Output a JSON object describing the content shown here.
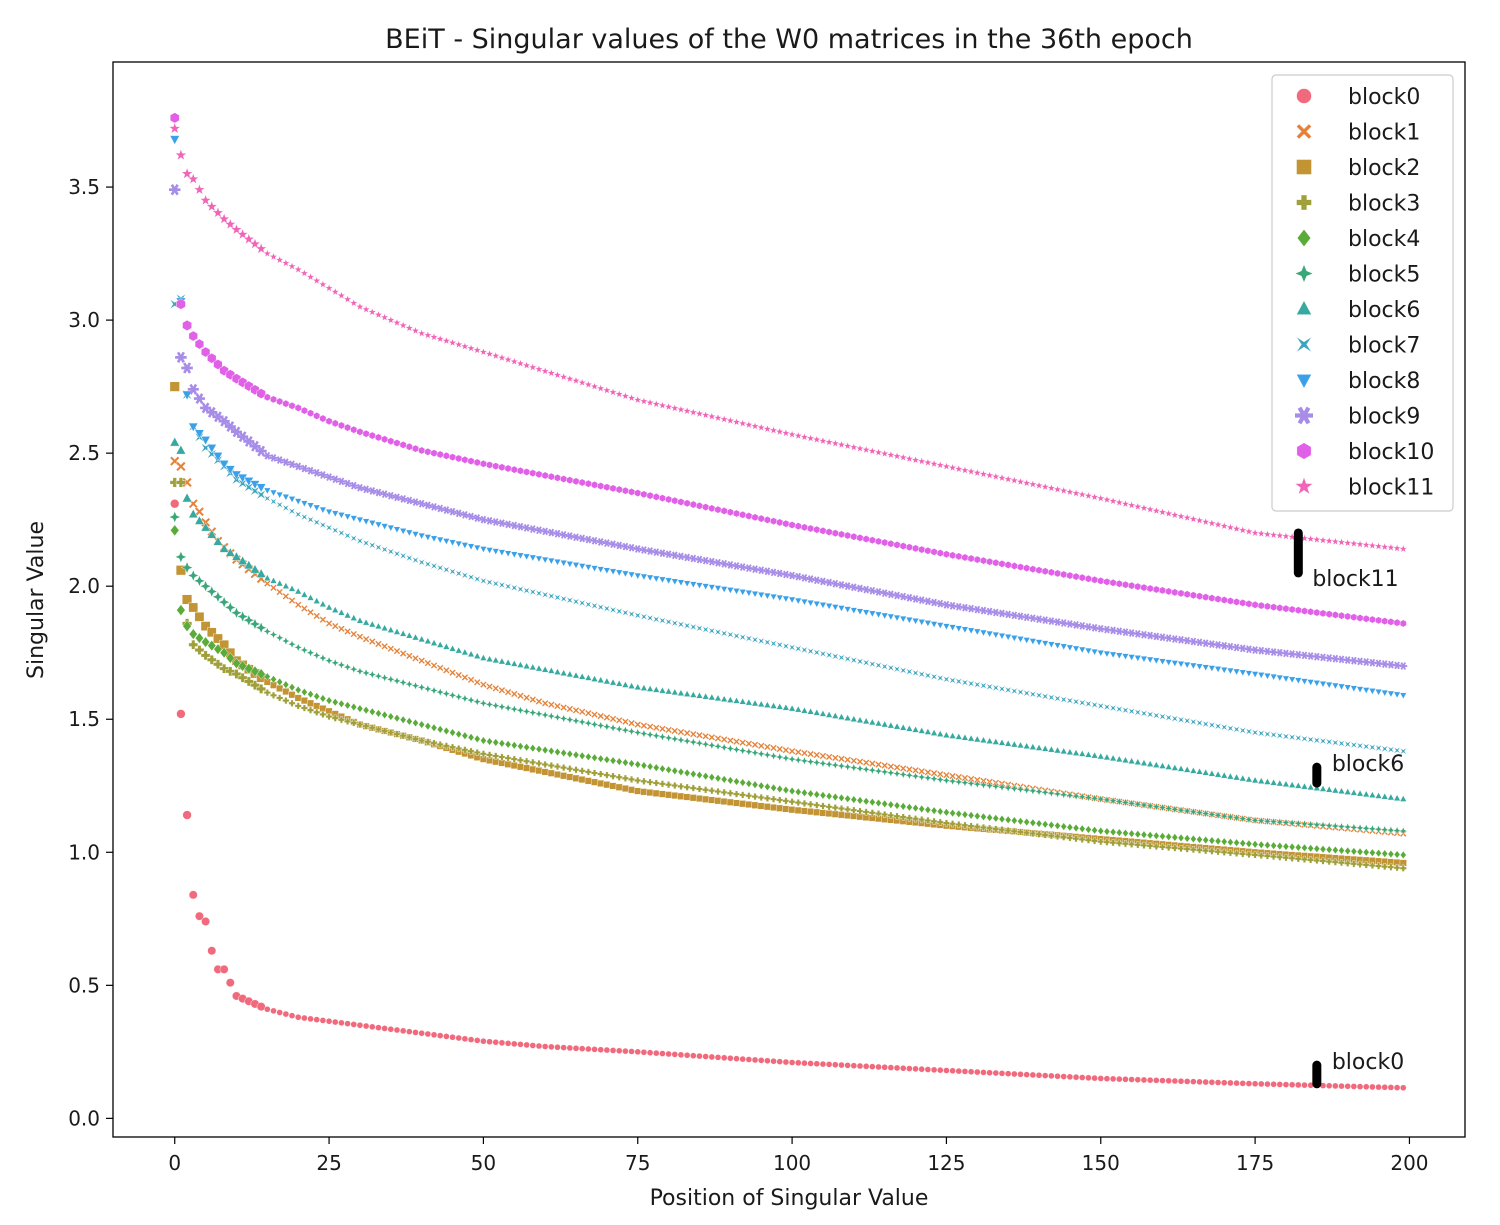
{
  "chart_data": {
    "type": "scatter",
    "title": "BEiT - Singular values of the W0 matrices in the 36th epoch",
    "xlabel": "Position of Singular Value",
    "ylabel": "Singular Value",
    "xlim": [
      -10,
      209
    ],
    "ylim": [
      -0.07,
      3.97
    ],
    "x_ticks": [
      0,
      25,
      50,
      75,
      100,
      125,
      150,
      175,
      200
    ],
    "y_ticks": [
      0.0,
      0.5,
      1.0,
      1.5,
      2.0,
      2.5,
      3.0,
      3.5
    ],
    "grid": false,
    "legend_position": "top-right",
    "x_range": [
      0,
      199
    ],
    "series": [
      {
        "name": "block0",
        "color": "#f0697c",
        "marker": "circle",
        "points": [
          [
            0,
            2.31
          ],
          [
            1,
            1.52
          ],
          [
            2,
            1.14
          ],
          [
            3,
            0.84
          ],
          [
            4,
            0.76
          ],
          [
            5,
            0.74
          ],
          [
            6,
            0.63
          ],
          [
            7,
            0.56
          ],
          [
            8,
            0.56
          ],
          [
            9,
            0.51
          ],
          [
            10,
            0.46
          ],
          [
            12,
            0.44
          ],
          [
            15,
            0.41
          ],
          [
            20,
            0.38
          ],
          [
            30,
            0.35
          ],
          [
            40,
            0.32
          ],
          [
            50,
            0.29
          ],
          [
            60,
            0.27
          ],
          [
            75,
            0.25
          ],
          [
            100,
            0.21
          ],
          [
            125,
            0.18
          ],
          [
            150,
            0.15
          ],
          [
            175,
            0.13
          ],
          [
            199,
            0.115
          ]
        ]
      },
      {
        "name": "block1",
        "color": "#e5823a",
        "marker": "x",
        "points": [
          [
            0,
            2.47
          ],
          [
            1,
            2.45
          ],
          [
            2,
            2.39
          ],
          [
            3,
            2.31
          ],
          [
            4,
            2.28
          ],
          [
            5,
            2.24
          ],
          [
            7,
            2.17
          ],
          [
            10,
            2.1
          ],
          [
            15,
            2.01
          ],
          [
            20,
            1.93
          ],
          [
            25,
            1.86
          ],
          [
            30,
            1.81
          ],
          [
            40,
            1.72
          ],
          [
            50,
            1.63
          ],
          [
            60,
            1.56
          ],
          [
            75,
            1.48
          ],
          [
            100,
            1.38
          ],
          [
            125,
            1.29
          ],
          [
            150,
            1.2
          ],
          [
            175,
            1.12
          ],
          [
            199,
            1.07
          ]
        ]
      },
      {
        "name": "block2",
        "color": "#c29434",
        "marker": "square",
        "points": [
          [
            0,
            2.75
          ],
          [
            1,
            2.06
          ],
          [
            2,
            1.95
          ],
          [
            3,
            1.92
          ],
          [
            5,
            1.85
          ],
          [
            8,
            1.78
          ],
          [
            10,
            1.72
          ],
          [
            15,
            1.64
          ],
          [
            20,
            1.58
          ],
          [
            25,
            1.53
          ],
          [
            30,
            1.48
          ],
          [
            40,
            1.42
          ],
          [
            50,
            1.35
          ],
          [
            75,
            1.23
          ],
          [
            100,
            1.16
          ],
          [
            125,
            1.1
          ],
          [
            150,
            1.05
          ],
          [
            175,
            1.0
          ],
          [
            199,
            0.96
          ]
        ]
      },
      {
        "name": "block3",
        "color": "#9fa03a",
        "marker": "plus",
        "points": [
          [
            0,
            2.39
          ],
          [
            1,
            2.39
          ],
          [
            2,
            1.86
          ],
          [
            3,
            1.78
          ],
          [
            5,
            1.74
          ],
          [
            8,
            1.69
          ],
          [
            10,
            1.67
          ],
          [
            15,
            1.6
          ],
          [
            20,
            1.55
          ],
          [
            25,
            1.51
          ],
          [
            30,
            1.48
          ],
          [
            40,
            1.42
          ],
          [
            50,
            1.37
          ],
          [
            75,
            1.27
          ],
          [
            100,
            1.19
          ],
          [
            125,
            1.11
          ],
          [
            150,
            1.04
          ],
          [
            175,
            0.99
          ],
          [
            199,
            0.94
          ]
        ]
      },
      {
        "name": "block4",
        "color": "#5aab3a",
        "marker": "diamond",
        "points": [
          [
            0,
            2.21
          ],
          [
            1,
            1.91
          ],
          [
            2,
            1.85
          ],
          [
            3,
            1.82
          ],
          [
            5,
            1.79
          ],
          [
            8,
            1.75
          ],
          [
            10,
            1.71
          ],
          [
            15,
            1.66
          ],
          [
            20,
            1.61
          ],
          [
            25,
            1.57
          ],
          [
            30,
            1.54
          ],
          [
            40,
            1.48
          ],
          [
            50,
            1.42
          ],
          [
            75,
            1.33
          ],
          [
            100,
            1.23
          ],
          [
            125,
            1.15
          ],
          [
            150,
            1.08
          ],
          [
            175,
            1.03
          ],
          [
            199,
            0.99
          ]
        ]
      },
      {
        "name": "block5",
        "color": "#3aa77a",
        "marker": "star4",
        "points": [
          [
            0,
            2.26
          ],
          [
            1,
            2.11
          ],
          [
            2,
            2.07
          ],
          [
            3,
            2.04
          ],
          [
            5,
            2.0
          ],
          [
            8,
            1.94
          ],
          [
            10,
            1.9
          ],
          [
            15,
            1.83
          ],
          [
            20,
            1.77
          ],
          [
            25,
            1.72
          ],
          [
            30,
            1.68
          ],
          [
            40,
            1.62
          ],
          [
            50,
            1.56
          ],
          [
            75,
            1.45
          ],
          [
            100,
            1.35
          ],
          [
            125,
            1.27
          ],
          [
            150,
            1.2
          ],
          [
            175,
            1.12
          ],
          [
            199,
            1.08
          ]
        ]
      },
      {
        "name": "block6",
        "color": "#36a9a0",
        "marker": "triangle",
        "points": [
          [
            0,
            2.54
          ],
          [
            1,
            2.51
          ],
          [
            2,
            2.33
          ],
          [
            3,
            2.27
          ],
          [
            5,
            2.22
          ],
          [
            8,
            2.14
          ],
          [
            10,
            2.11
          ],
          [
            15,
            2.03
          ],
          [
            20,
            1.98
          ],
          [
            25,
            1.92
          ],
          [
            30,
            1.87
          ],
          [
            40,
            1.8
          ],
          [
            50,
            1.73
          ],
          [
            75,
            1.62
          ],
          [
            100,
            1.54
          ],
          [
            125,
            1.44
          ],
          [
            150,
            1.36
          ],
          [
            175,
            1.27
          ],
          [
            199,
            1.2
          ]
        ]
      },
      {
        "name": "block7",
        "color": "#3ba4bf",
        "marker": "bowtie",
        "points": [
          [
            0,
            3.06
          ],
          [
            1,
            3.08
          ],
          [
            2,
            2.72
          ],
          [
            3,
            2.6
          ],
          [
            5,
            2.52
          ],
          [
            8,
            2.45
          ],
          [
            10,
            2.4
          ],
          [
            15,
            2.33
          ],
          [
            20,
            2.27
          ],
          [
            25,
            2.22
          ],
          [
            30,
            2.17
          ],
          [
            40,
            2.09
          ],
          [
            50,
            2.02
          ],
          [
            75,
            1.89
          ],
          [
            100,
            1.77
          ],
          [
            125,
            1.65
          ],
          [
            150,
            1.55
          ],
          [
            175,
            1.45
          ],
          [
            199,
            1.38
          ]
        ]
      },
      {
        "name": "block8",
        "color": "#3aa0e8",
        "marker": "triangle-down",
        "points": [
          [
            0,
            3.68
          ],
          [
            1,
            3.07
          ],
          [
            2,
            2.72
          ],
          [
            3,
            2.6
          ],
          [
            5,
            2.55
          ],
          [
            8,
            2.46
          ],
          [
            10,
            2.42
          ],
          [
            15,
            2.36
          ],
          [
            20,
            2.32
          ],
          [
            25,
            2.28
          ],
          [
            30,
            2.25
          ],
          [
            40,
            2.19
          ],
          [
            50,
            2.14
          ],
          [
            75,
            2.04
          ],
          [
            100,
            1.95
          ],
          [
            125,
            1.85
          ],
          [
            150,
            1.75
          ],
          [
            175,
            1.67
          ],
          [
            199,
            1.59
          ]
        ]
      },
      {
        "name": "block9",
        "color": "#a78de8",
        "marker": "asterisk",
        "points": [
          [
            0,
            3.49
          ],
          [
            1,
            2.86
          ],
          [
            2,
            2.82
          ],
          [
            3,
            2.74
          ],
          [
            5,
            2.67
          ],
          [
            8,
            2.62
          ],
          [
            10,
            2.58
          ],
          [
            15,
            2.49
          ],
          [
            20,
            2.45
          ],
          [
            25,
            2.41
          ],
          [
            30,
            2.37
          ],
          [
            40,
            2.31
          ],
          [
            50,
            2.25
          ],
          [
            75,
            2.14
          ],
          [
            100,
            2.04
          ],
          [
            125,
            1.93
          ],
          [
            150,
            1.84
          ],
          [
            175,
            1.76
          ],
          [
            199,
            1.7
          ]
        ]
      },
      {
        "name": "block10",
        "color": "#e160e8",
        "marker": "hexagon",
        "points": [
          [
            0,
            3.76
          ],
          [
            1,
            3.06
          ],
          [
            2,
            2.98
          ],
          [
            3,
            2.94
          ],
          [
            5,
            2.88
          ],
          [
            8,
            2.81
          ],
          [
            10,
            2.78
          ],
          [
            15,
            2.71
          ],
          [
            20,
            2.67
          ],
          [
            25,
            2.62
          ],
          [
            30,
            2.58
          ],
          [
            40,
            2.51
          ],
          [
            50,
            2.46
          ],
          [
            75,
            2.35
          ],
          [
            100,
            2.23
          ],
          [
            125,
            2.12
          ],
          [
            150,
            2.02
          ],
          [
            175,
            1.93
          ],
          [
            199,
            1.86
          ]
        ]
      },
      {
        "name": "block11",
        "color": "#f065b8",
        "marker": "star",
        "points": [
          [
            0,
            3.72
          ],
          [
            1,
            3.62
          ],
          [
            2,
            3.55
          ],
          [
            3,
            3.53
          ],
          [
            5,
            3.45
          ],
          [
            8,
            3.38
          ],
          [
            10,
            3.34
          ],
          [
            15,
            3.25
          ],
          [
            20,
            3.19
          ],
          [
            25,
            3.12
          ],
          [
            30,
            3.05
          ],
          [
            40,
            2.95
          ],
          [
            50,
            2.88
          ],
          [
            75,
            2.7
          ],
          [
            100,
            2.57
          ],
          [
            125,
            2.45
          ],
          [
            150,
            2.33
          ],
          [
            175,
            2.2
          ],
          [
            199,
            2.14
          ]
        ]
      }
    ],
    "annotations": [
      {
        "text": "block11",
        "x": 182,
        "y_from": 2.05,
        "y_to": 2.2
      },
      {
        "text": "block6",
        "x": 185,
        "y_from": 1.26,
        "y_to": 1.32
      },
      {
        "text": "block0",
        "x": 185,
        "y_from": 0.13,
        "y_to": 0.2
      }
    ]
  }
}
